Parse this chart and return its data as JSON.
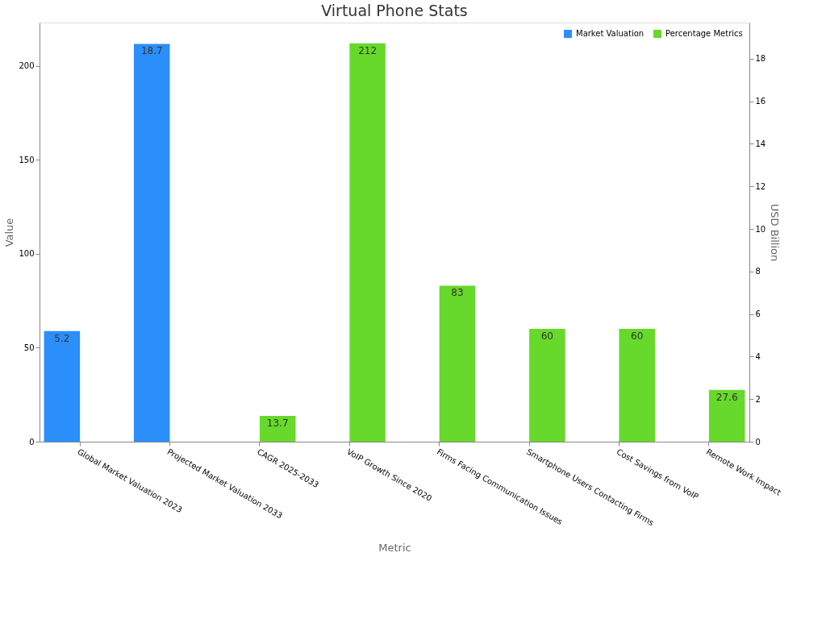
{
  "chart_data": {
    "type": "bar",
    "title": "Virtual Phone Stats",
    "xlabel": "Metric",
    "ylabel": "Value",
    "y2label": "USD Billion",
    "categories": [
      "Global Market Valuation 2023",
      "Projected Market Valuation 2033",
      "CAGR 2025-2033",
      "VoIP Growth Since 2020",
      "Firms Facing Communication Issues",
      "Smartphone Users Contacting Firms",
      "Cost Savings from VoIP",
      "Remote Work Impact"
    ],
    "series": [
      {
        "name": "Market Valuation",
        "color": "#2b8ffa",
        "axis": "y2",
        "values": [
          5.2,
          18.7,
          null,
          null,
          null,
          null,
          null,
          null
        ]
      },
      {
        "name": "Percentage Metrics",
        "color": "#66d92a",
        "values": [
          null,
          null,
          13.7,
          212,
          83,
          60,
          60,
          27.6
        ]
      }
    ],
    "ylim": [
      0,
      223
    ],
    "yticks": [
      0,
      50,
      100,
      150,
      200
    ],
    "y2lim": [
      0,
      19.7
    ],
    "y2ticks": [
      0,
      2,
      4,
      6,
      8,
      10,
      12,
      14,
      16,
      18
    ],
    "data_labels": true,
    "legend": "top right",
    "grid": false
  }
}
